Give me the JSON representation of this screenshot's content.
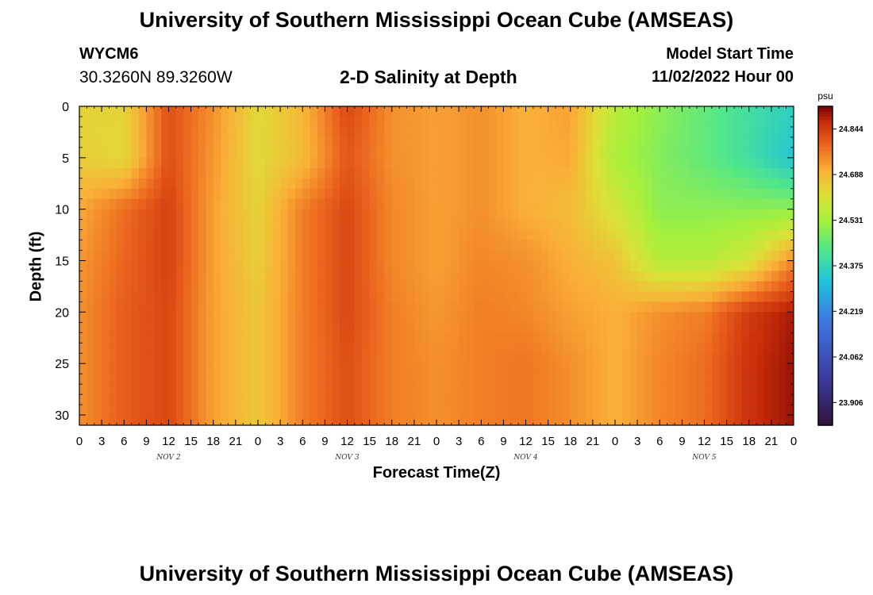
{
  "header": {
    "title": "University of Southern Mississippi Ocean Cube (AMSEAS)",
    "station": "WYCM6",
    "coordinates": "30.3260N  89.3260W",
    "subtitle": "2-D Salinity at Depth",
    "model_start_label": "Model Start Time",
    "model_start_value": "11/02/2022 Hour 00",
    "bottom_title": "University of Southern Mississippi Ocean Cube (AMSEAS)"
  },
  "chart_data": {
    "type": "heatmap",
    "title": "2-D Salinity at Depth",
    "xlabel": "Forecast Time(Z)",
    "ylabel": "Depth (ft)",
    "x_range_hours": [
      0,
      96
    ],
    "x_tick_labels": [
      "0",
      "3",
      "6",
      "9",
      "12",
      "15",
      "18",
      "21",
      "0",
      "3",
      "6",
      "9",
      "12",
      "15",
      "18",
      "21",
      "0",
      "3",
      "6",
      "9",
      "12",
      "15",
      "18",
      "21",
      "0",
      "3",
      "6",
      "9",
      "12",
      "15",
      "18",
      "21",
      "0"
    ],
    "day_labels": [
      {
        "label": "NOV 2",
        "hour": 12
      },
      {
        "label": "NOV 3",
        "hour": 36
      },
      {
        "label": "NOV 4",
        "hour": 60
      },
      {
        "label": "NOV 5",
        "hour": 84
      }
    ],
    "y_range_ft": [
      0,
      31
    ],
    "y_ticks": [
      0,
      5,
      10,
      15,
      20,
      25,
      30
    ],
    "colorbar": {
      "unit": "psu",
      "min": 23.828,
      "max": 24.922,
      "tick_values": [
        23.906,
        24.062,
        24.219,
        24.375,
        24.531,
        24.688,
        24.844
      ],
      "tick_labels": [
        "23.906",
        "24.062",
        "24.219",
        "24.375",
        "24.531",
        "24.688",
        "24.844"
      ]
    },
    "approx_salinity_field": {
      "description": "approximate salinity (psu) estimated from colors; rows = depths (ft), columns = forecast hours",
      "depths_ft": [
        0,
        5,
        10,
        15,
        20,
        25,
        31
      ],
      "hours": [
        0,
        6,
        12,
        18,
        24,
        30,
        36,
        42,
        48,
        54,
        60,
        66,
        72,
        78,
        84,
        90,
        96
      ],
      "values": [
        [
          24.64,
          24.64,
          24.82,
          24.74,
          24.63,
          24.69,
          24.83,
          24.74,
          24.72,
          24.74,
          24.7,
          24.72,
          24.56,
          24.5,
          24.45,
          24.4,
          24.36
        ],
        [
          24.65,
          24.63,
          24.82,
          24.73,
          24.63,
          24.68,
          24.81,
          24.74,
          24.72,
          24.74,
          24.7,
          24.71,
          24.54,
          24.49,
          24.45,
          24.4,
          24.33
        ],
        [
          24.71,
          24.78,
          24.84,
          24.72,
          24.64,
          24.76,
          24.83,
          24.75,
          24.72,
          24.74,
          24.7,
          24.68,
          24.6,
          24.5,
          24.5,
          24.5,
          24.5
        ],
        [
          24.73,
          24.79,
          24.84,
          24.72,
          24.65,
          24.76,
          24.83,
          24.75,
          24.72,
          24.75,
          24.74,
          24.7,
          24.67,
          24.55,
          24.55,
          24.6,
          24.75
        ],
        [
          24.74,
          24.8,
          24.83,
          24.72,
          24.66,
          24.76,
          24.83,
          24.76,
          24.73,
          24.76,
          24.75,
          24.72,
          24.7,
          24.74,
          24.76,
          24.85,
          24.89
        ],
        [
          24.74,
          24.8,
          24.83,
          24.72,
          24.66,
          24.76,
          24.82,
          24.76,
          24.74,
          24.76,
          24.77,
          24.74,
          24.7,
          24.75,
          24.78,
          24.86,
          24.9
        ],
        [
          24.74,
          24.8,
          24.83,
          24.72,
          24.66,
          24.76,
          24.82,
          24.76,
          24.74,
          24.76,
          24.77,
          24.74,
          24.7,
          24.75,
          24.78,
          24.86,
          24.9
        ]
      ]
    }
  }
}
